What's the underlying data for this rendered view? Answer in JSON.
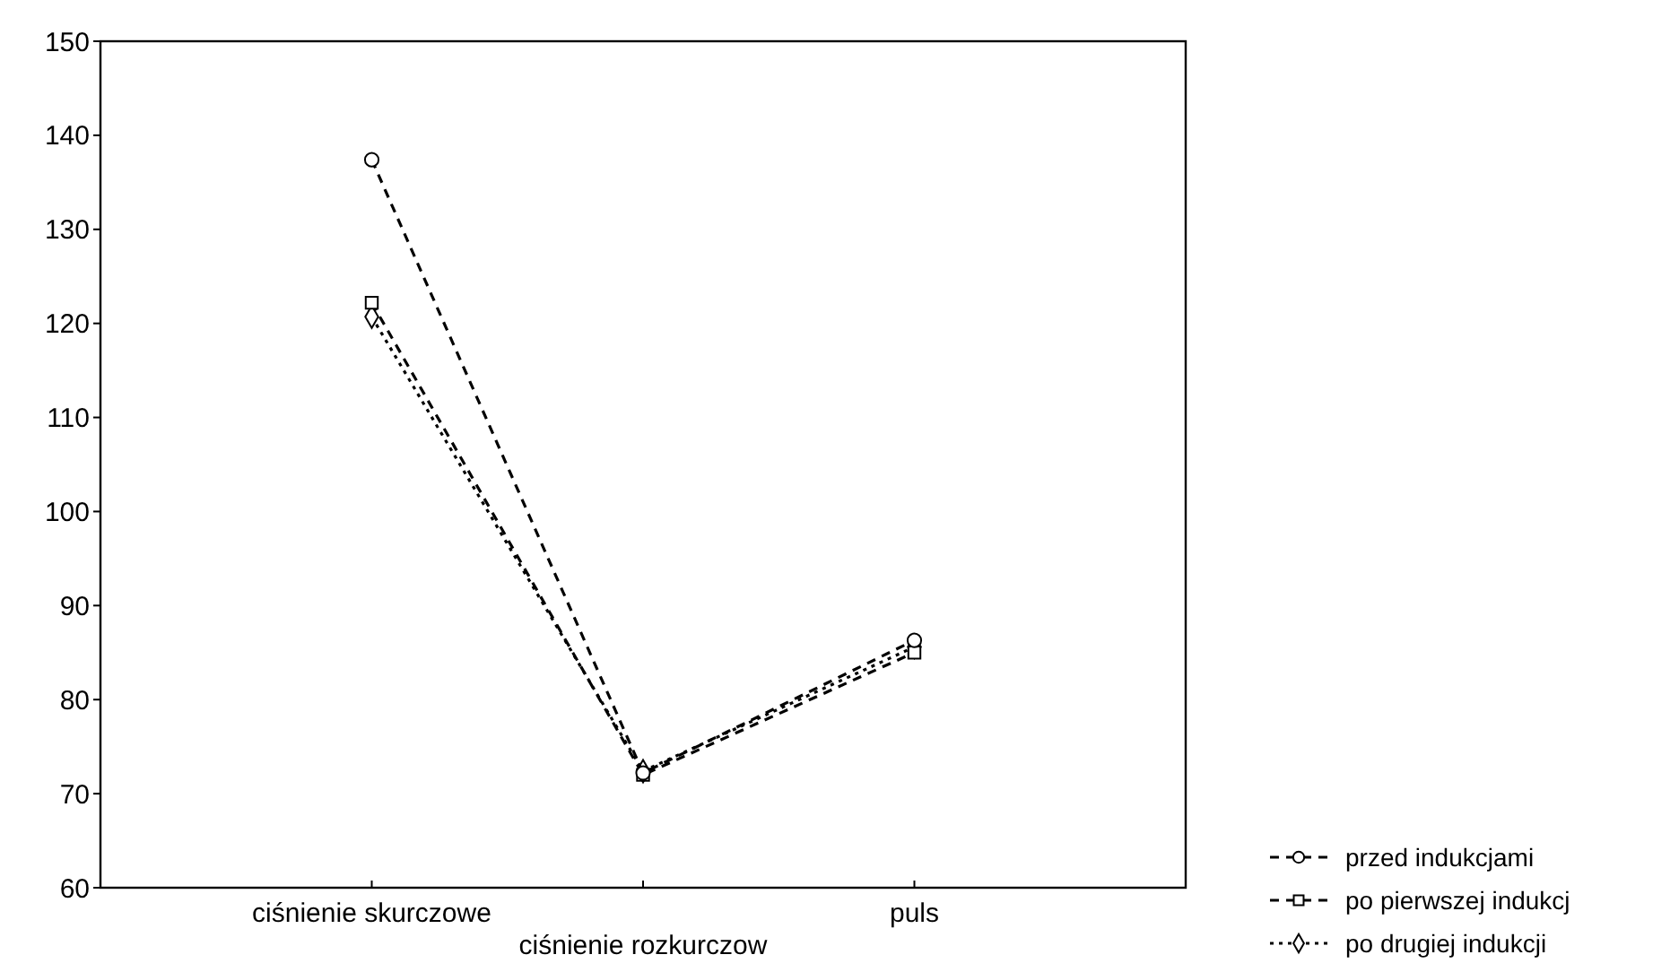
{
  "chart_data": {
    "type": "line",
    "categories": [
      "ciśnienie skurczowe",
      "ciśnienie rozkurczow",
      "puls"
    ],
    "series": [
      {
        "name": "przed indukcjami",
        "color": "#000000",
        "values": [
          137.4,
          72.2,
          86.3
        ],
        "marker": "circle",
        "line_style": "dashed"
      },
      {
        "name": "po pierwszej indukcj",
        "color": "#000000",
        "values": [
          122.2,
          72,
          85
        ],
        "marker": "square",
        "line_style": "dashed"
      },
      {
        "name": "po drugiej indukcji",
        "color": "#000000",
        "values": [
          120.7,
          72.4,
          85.6
        ],
        "marker": "diamond",
        "line_style": "dotted"
      }
    ],
    "ylim": [
      60,
      150
    ],
    "yticks": [
      60,
      70,
      80,
      90,
      100,
      110,
      120,
      130,
      140,
      150
    ],
    "grid": false,
    "legend": "bottom right"
  }
}
